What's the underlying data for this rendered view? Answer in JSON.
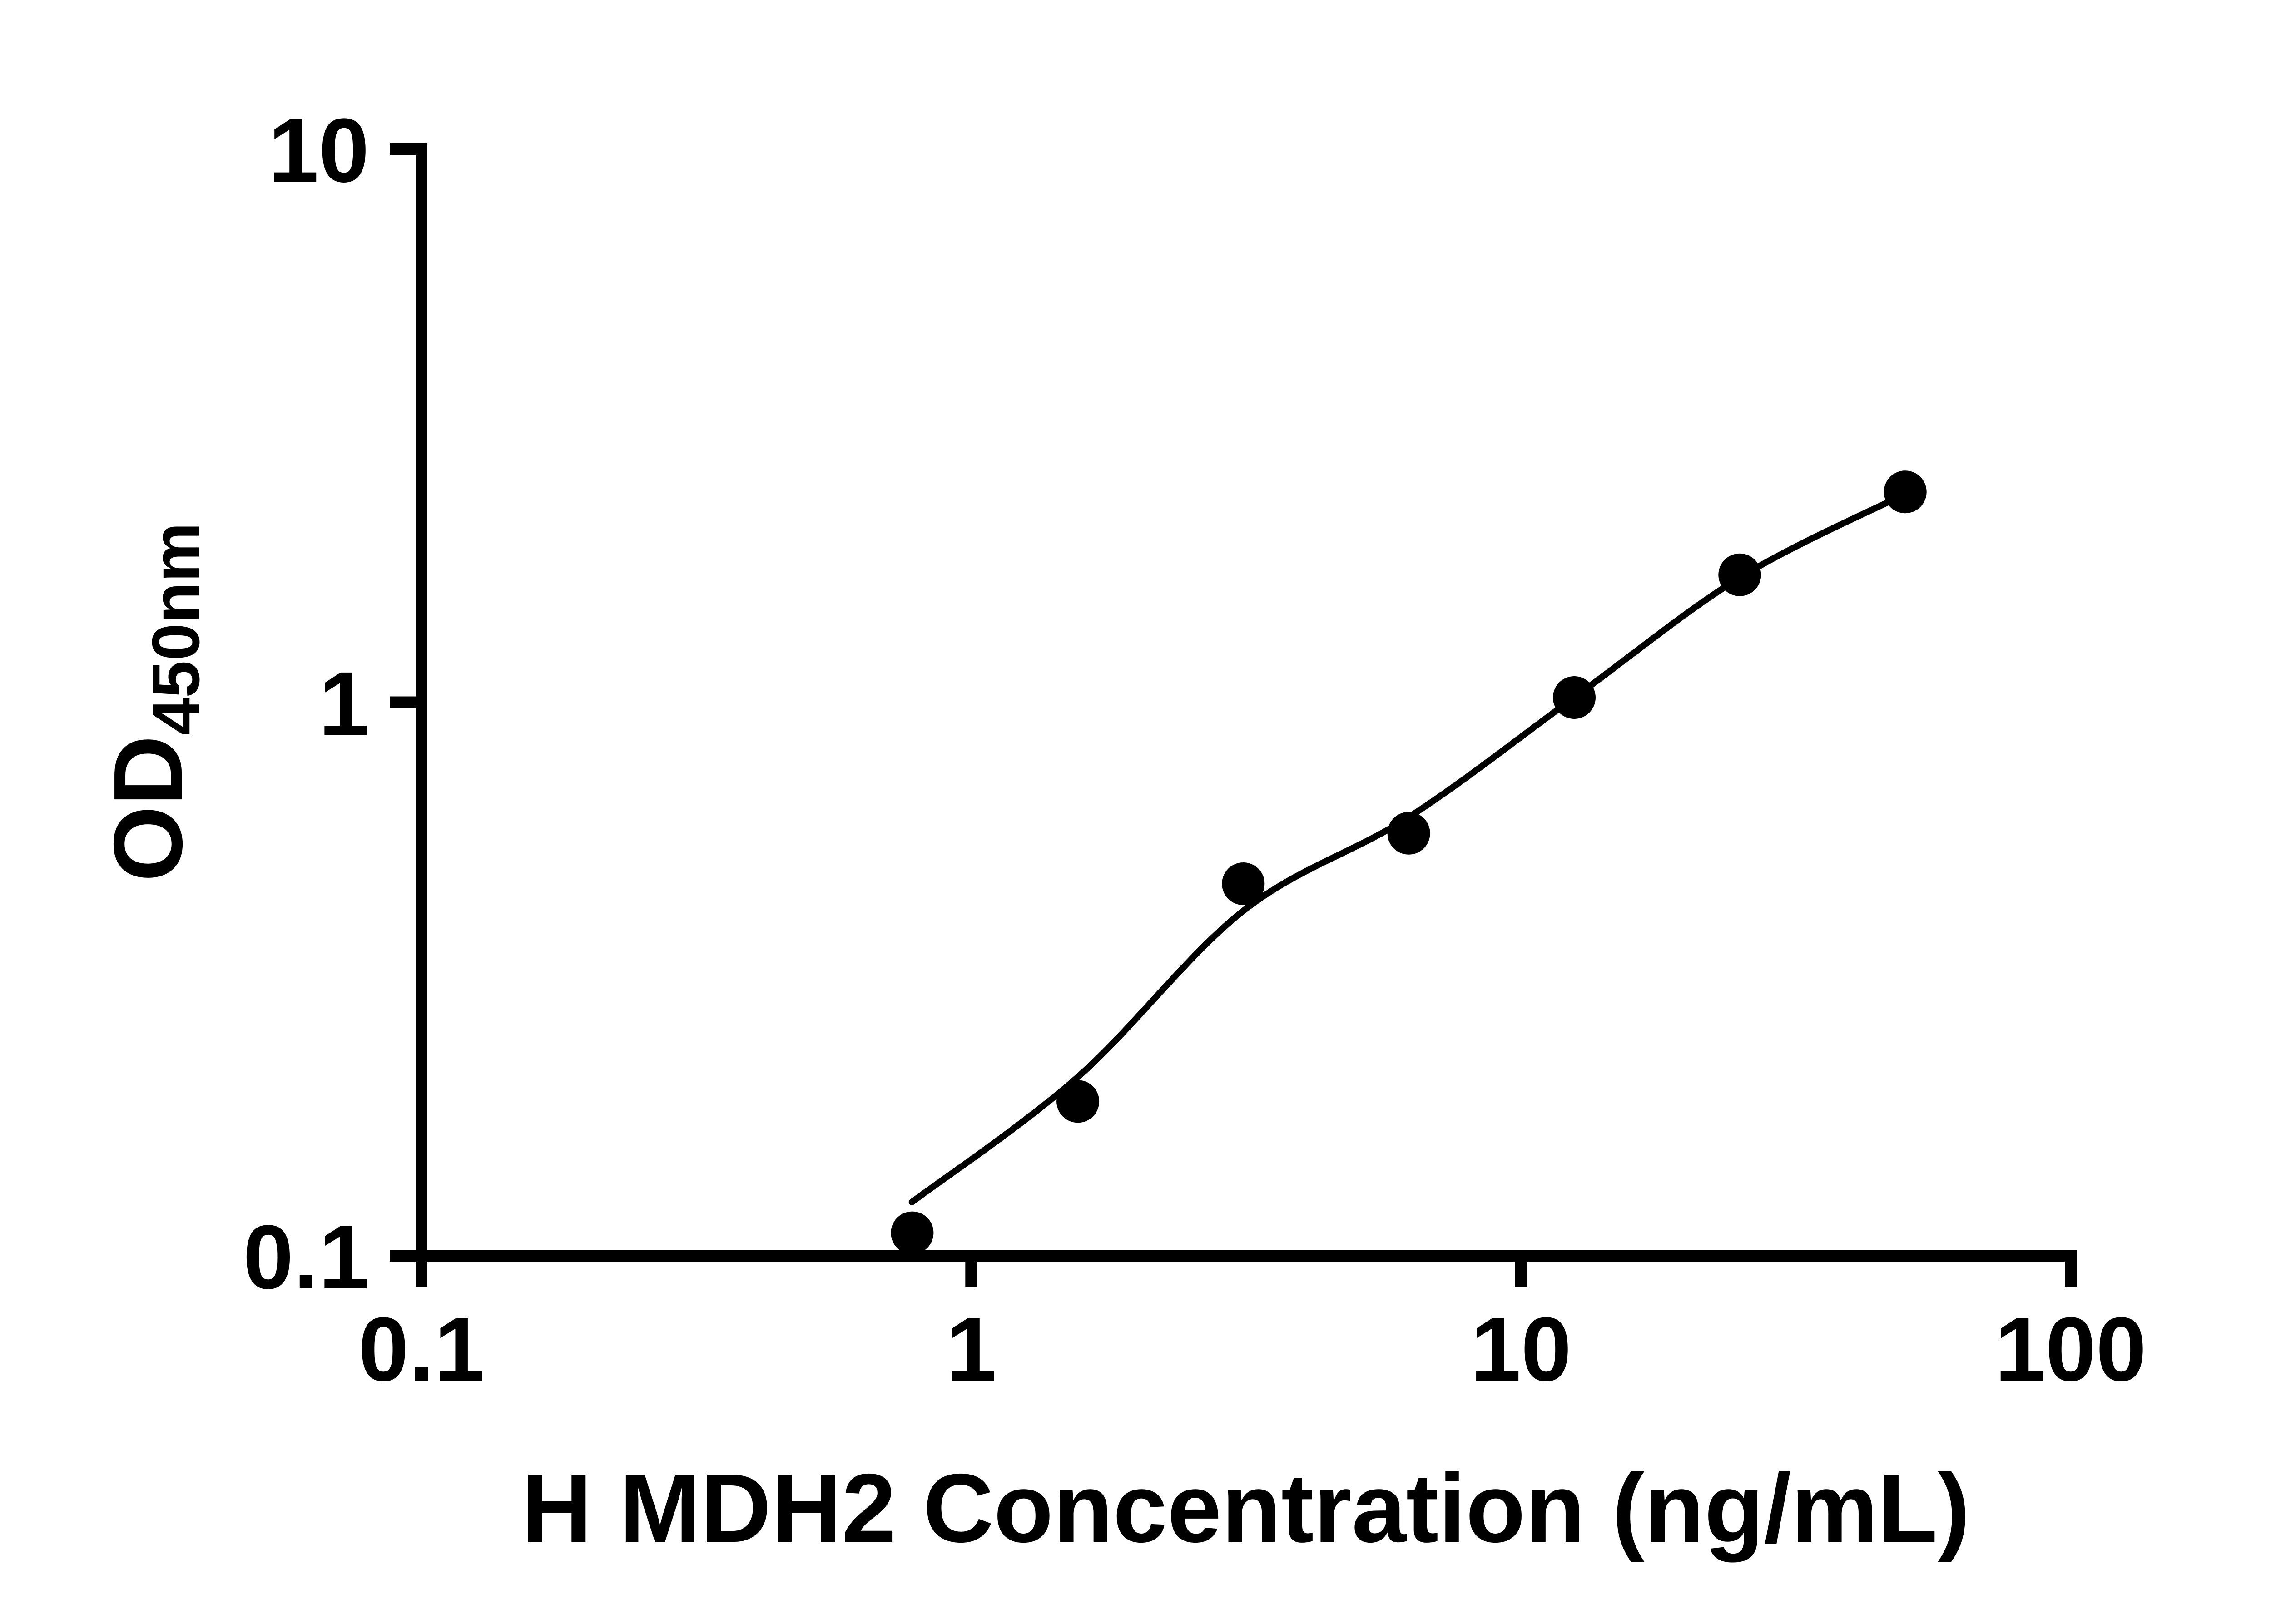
{
  "chart_data": {
    "type": "scatter",
    "title": "",
    "xlabel": "H MDH2 Concentration (ng/mL)",
    "ylabel_main": "OD",
    "ylabel_sub": "450nm",
    "x_scale": "log",
    "y_scale": "log",
    "xlim": [
      0.1,
      100
    ],
    "ylim": [
      0.1,
      10
    ],
    "grid": false,
    "legend": null,
    "axis_color": "#000000",
    "background_color": "#ffffff",
    "x_ticks": [
      {
        "value": 0.1,
        "label": "0.1"
      },
      {
        "value": 1,
        "label": "1"
      },
      {
        "value": 10,
        "label": "10"
      },
      {
        "value": 100,
        "label": "100"
      }
    ],
    "y_ticks": [
      {
        "value": 0.1,
        "label": "0.1"
      },
      {
        "value": 1,
        "label": "1"
      },
      {
        "value": 10,
        "label": "10"
      }
    ],
    "series": [
      {
        "marker": "circle",
        "color": "#000000",
        "points": [
          {
            "x": 0.781,
            "y": 0.11
          },
          {
            "x": 1.563,
            "y": 0.19
          },
          {
            "x": 3.125,
            "y": 0.47
          },
          {
            "x": 6.25,
            "y": 0.58
          },
          {
            "x": 12.5,
            "y": 1.02
          },
          {
            "x": 25,
            "y": 1.7
          },
          {
            "x": 50,
            "y": 2.4
          }
        ]
      }
    ],
    "trend_curve": {
      "color": "#000000",
      "points": [
        {
          "x": 0.78,
          "y": 0.125
        },
        {
          "x": 1.56,
          "y": 0.21
        },
        {
          "x": 3.125,
          "y": 0.42
        },
        {
          "x": 6.25,
          "y": 0.62
        },
        {
          "x": 12.5,
          "y": 1.02
        },
        {
          "x": 25,
          "y": 1.68
        },
        {
          "x": 50,
          "y": 2.38
        }
      ]
    }
  }
}
